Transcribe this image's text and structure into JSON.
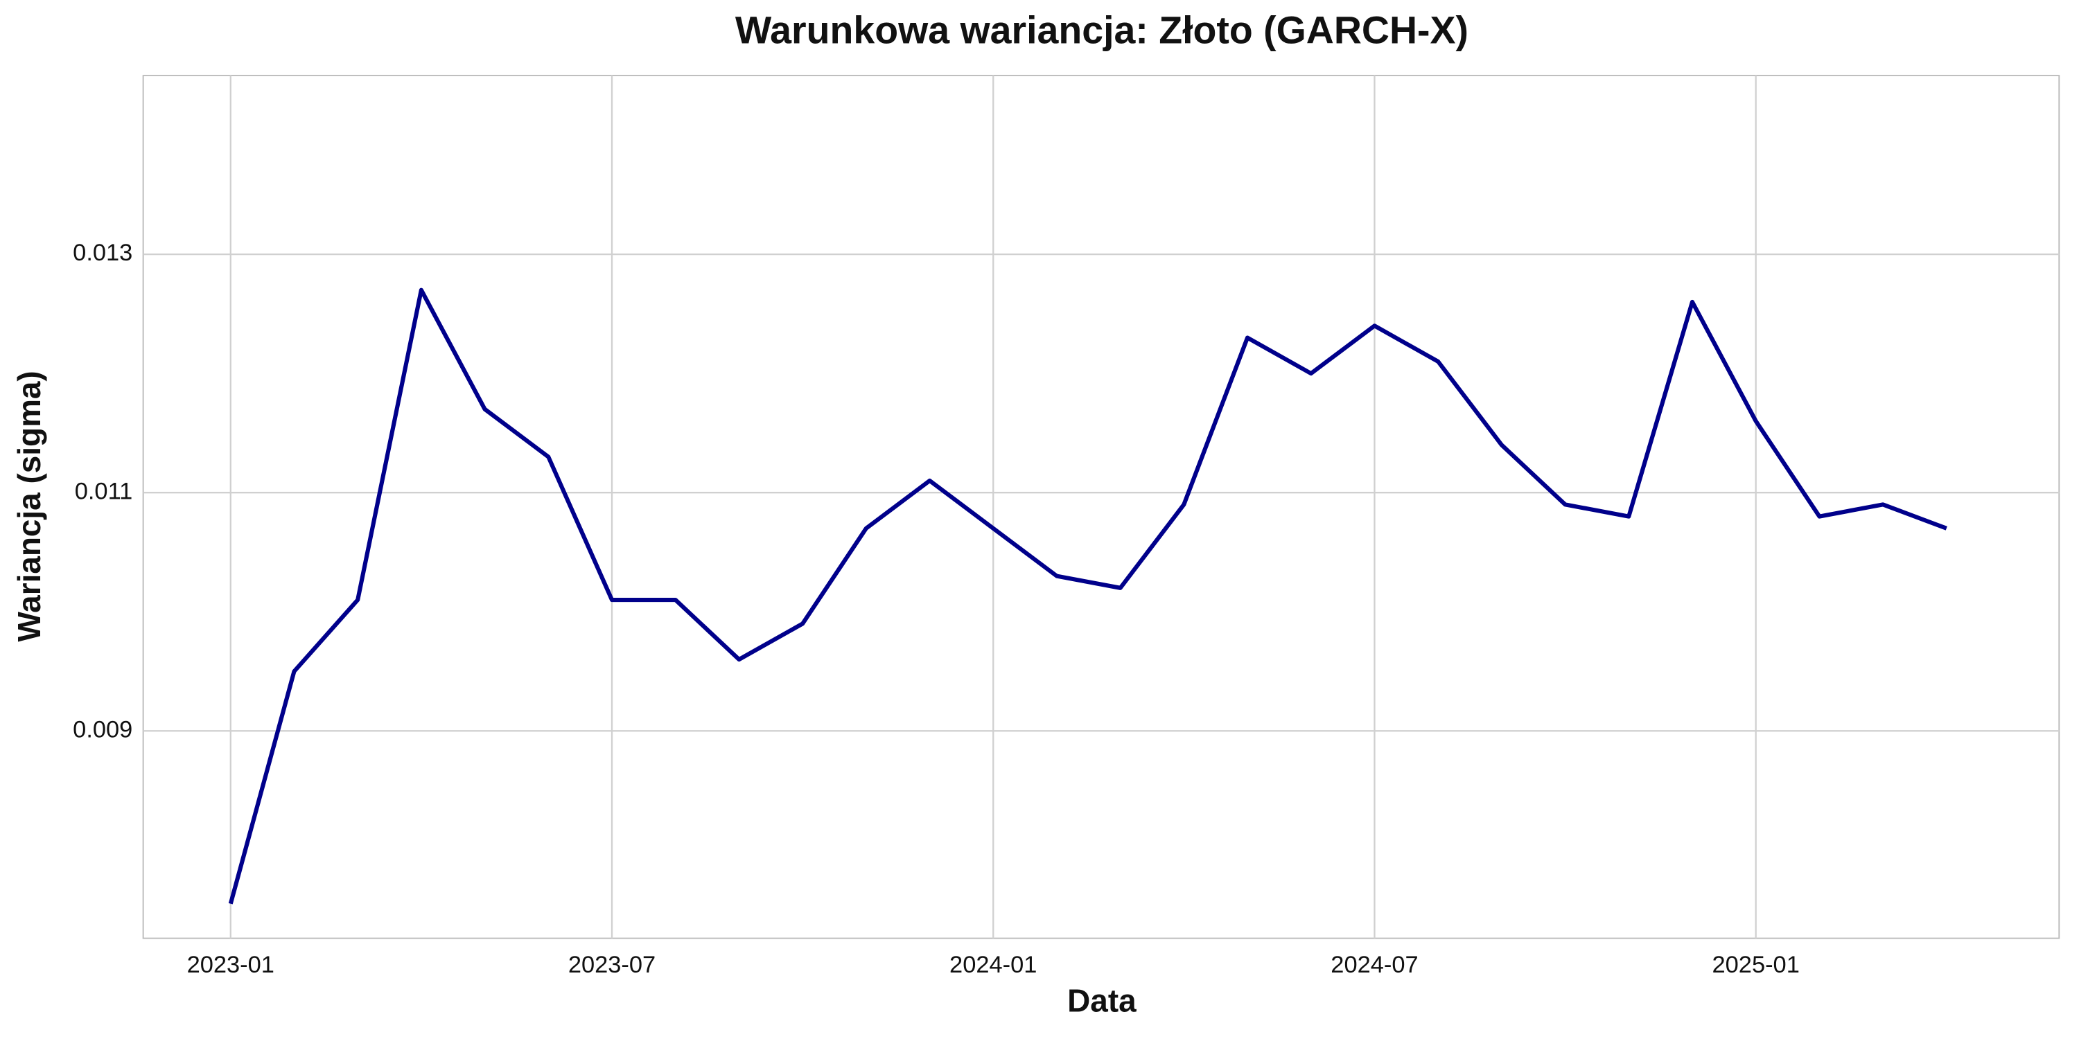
{
  "chart_data": {
    "type": "line",
    "title": "Warunkowa wariancja: Złoto (GARCH-X)",
    "x_label": "Data",
    "y_label": "Wariancja (sigma)",
    "x": [
      "2023-01",
      "2023-02",
      "2023-03",
      "2023-04",
      "2023-05",
      "2023-06",
      "2023-07",
      "2023-08",
      "2023-09",
      "2023-10",
      "2023-11",
      "2023-12",
      "2024-01",
      "2024-02",
      "2024-03",
      "2024-04",
      "2024-05",
      "2024-06",
      "2024-07",
      "2024-08",
      "2024-09",
      "2024-10",
      "2024-11",
      "2024-12",
      "2025-01",
      "2025-02",
      "2025-03",
      "2025-04"
    ],
    "series": [
      {
        "name": "sigma",
        "color": "#00008b",
        "values": [
          0.00755,
          0.0095,
          0.0101,
          0.0127,
          0.0117,
          0.0113,
          0.0101,
          0.0101,
          0.0096,
          0.0099,
          0.0107,
          0.0111,
          0.0107,
          0.0103,
          0.0102,
          0.0109,
          0.0123,
          0.012,
          0.0124,
          0.0121,
          0.0114,
          0.0109,
          0.0108,
          0.0126,
          0.0116,
          0.0108,
          0.0109,
          0.0107
        ]
      }
    ],
    "xlim": [
      "2022-12",
      "2025-05"
    ],
    "xticks": [
      "2023-01",
      "2023-07",
      "2024-01",
      "2024-07",
      "2025-01"
    ],
    "ylim": [
      0.00726,
      0.0145
    ],
    "yticks": [
      0.009,
      0.011,
      0.013
    ],
    "grid": true
  }
}
